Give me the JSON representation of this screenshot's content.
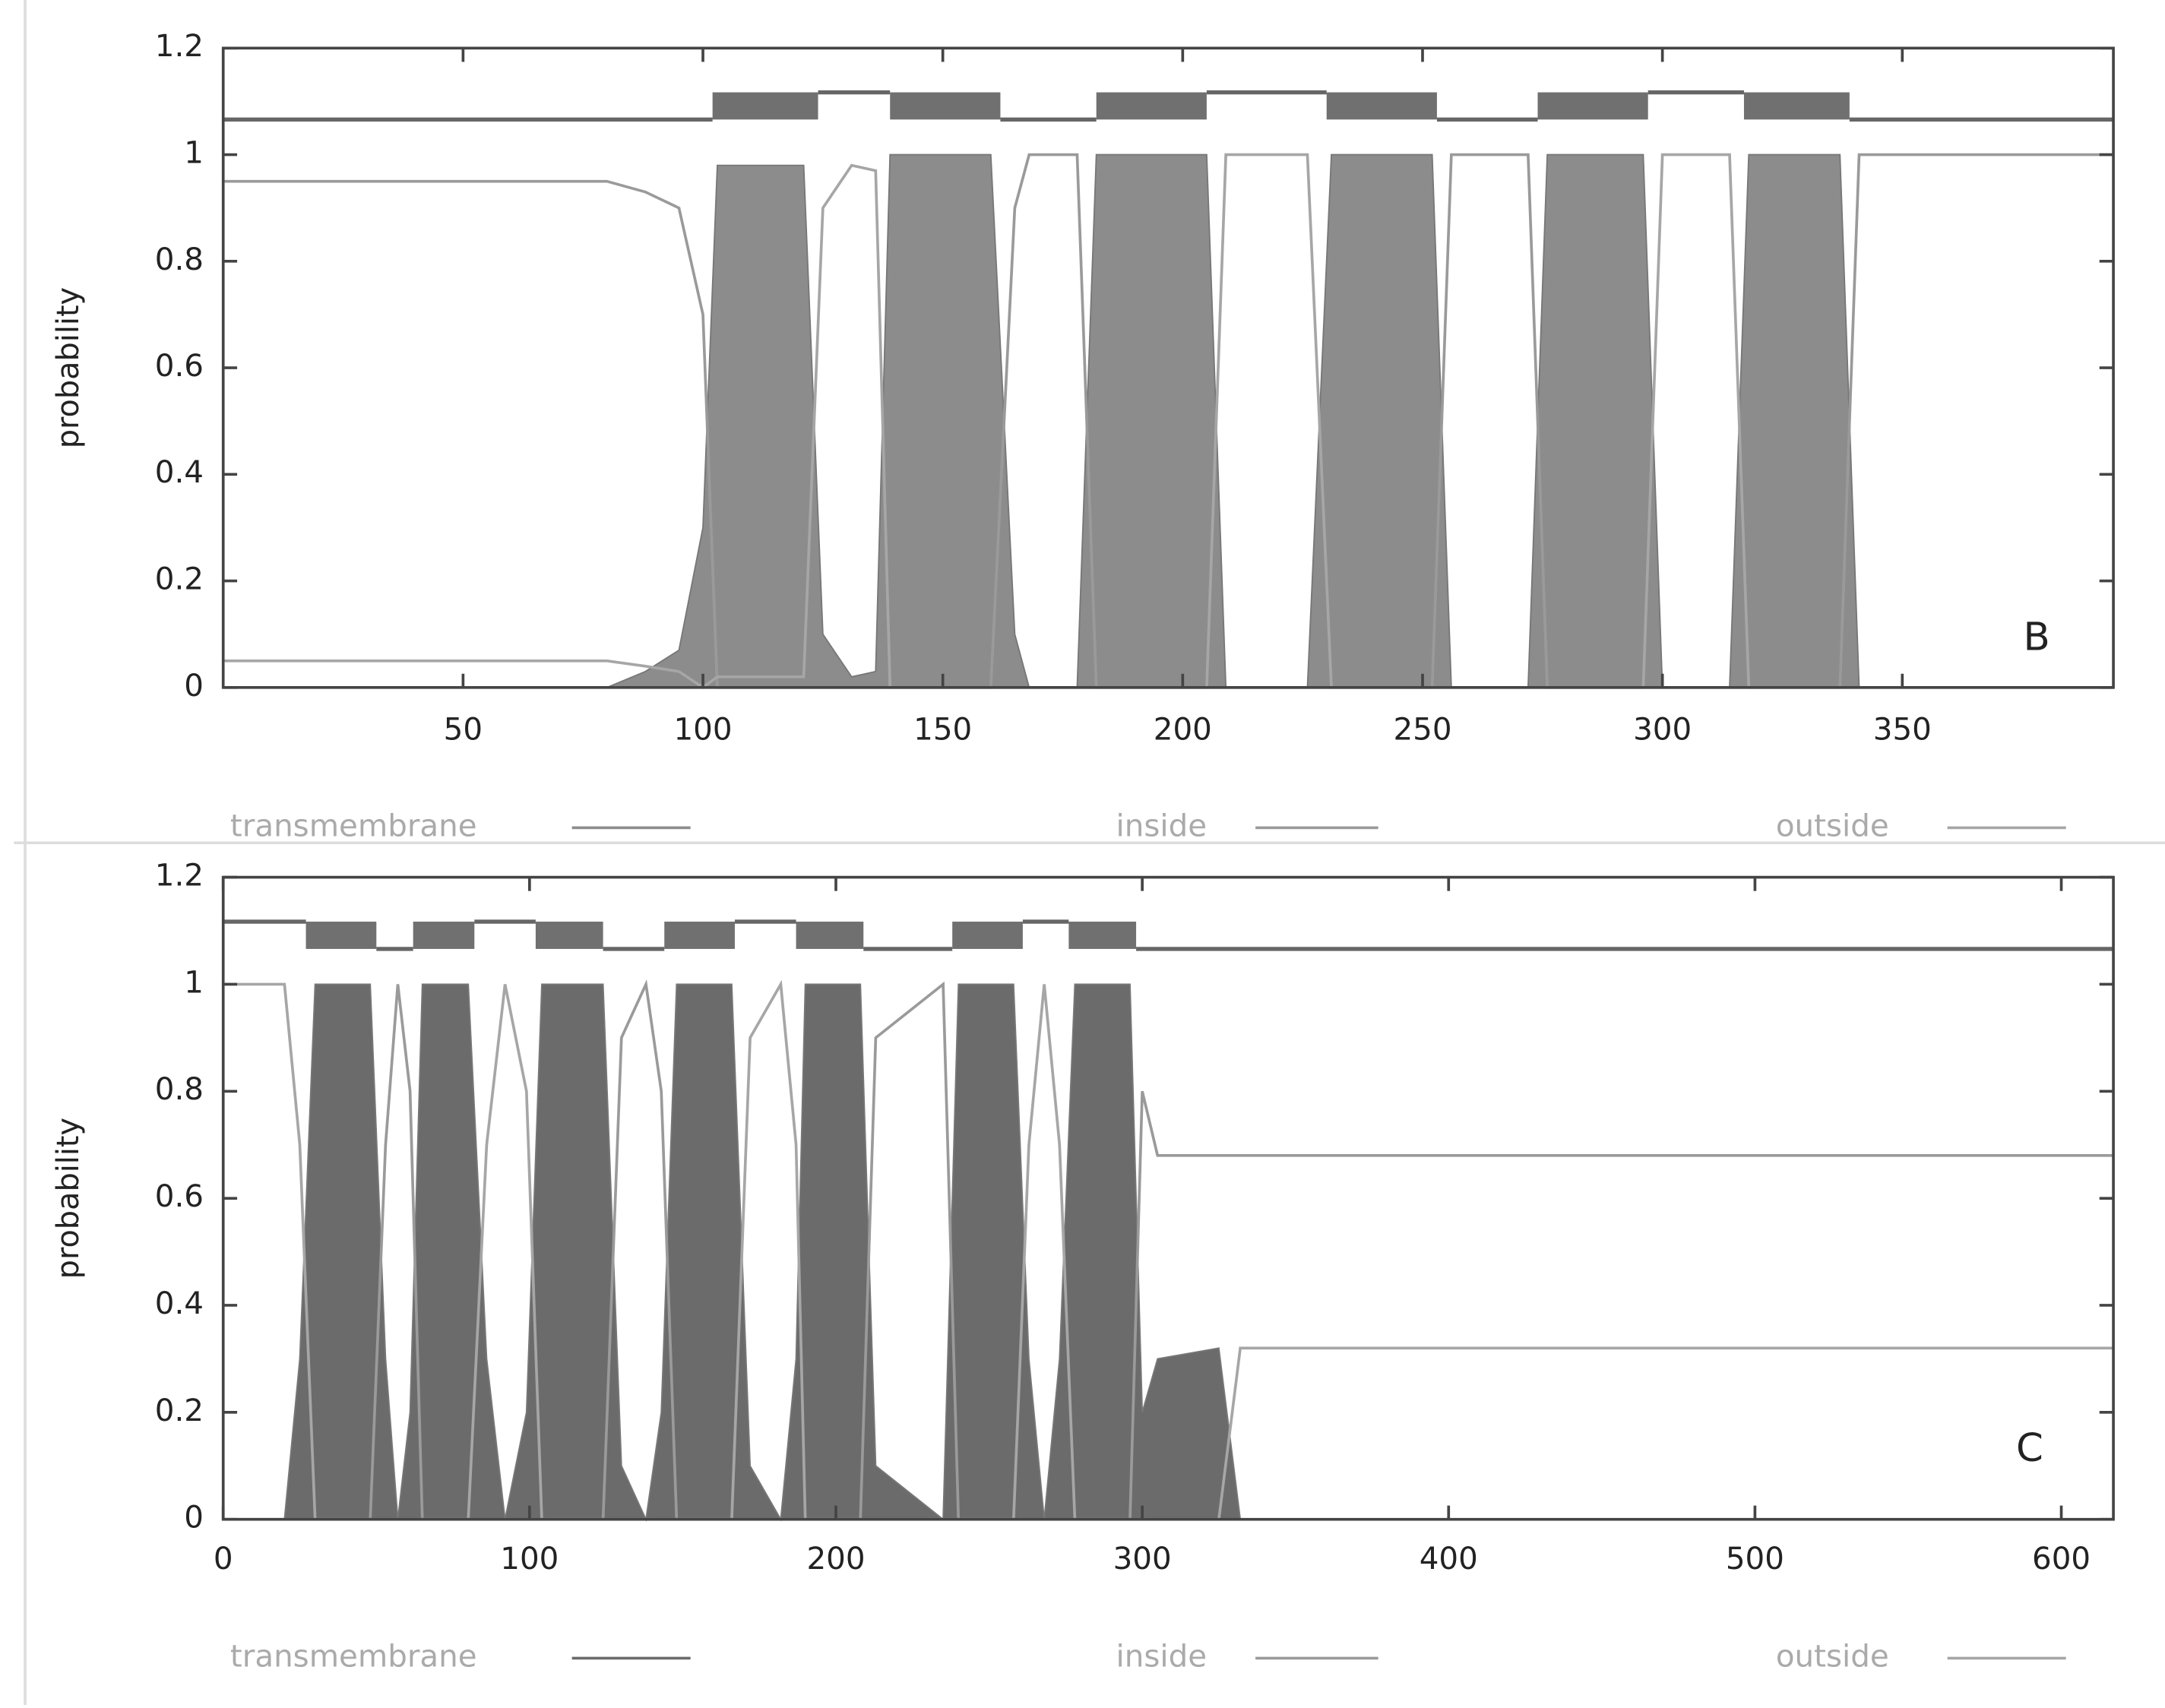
{
  "chart_data": [
    {
      "type": "line",
      "y_label": "probability",
      "annotation": "B",
      "xlim": [
        0,
        394
      ],
      "xticks": [
        50,
        100,
        150,
        200,
        250,
        300,
        350
      ],
      "ylim": [
        0,
        1.2
      ],
      "yticks": [
        0,
        0.2,
        0.4,
        0.6,
        0.8,
        1,
        1.2
      ],
      "x": [
        0,
        80,
        88,
        95,
        100,
        103,
        121,
        125,
        131,
        136,
        139,
        160,
        165,
        168,
        178,
        182,
        205,
        209,
        226,
        231,
        252,
        256,
        272,
        276,
        296,
        300,
        314,
        318,
        337,
        341,
        394
      ],
      "series": [
        {
          "name": "transmembrane",
          "color": "#8c8c8c",
          "area": true,
          "values": [
            0,
            0,
            0.03,
            0.07,
            0.3,
            0.98,
            0.98,
            0.1,
            0.02,
            0.03,
            1,
            1,
            0.1,
            0,
            0,
            1,
            1,
            0,
            0,
            1,
            1,
            0,
            0,
            1,
            1,
            0,
            0,
            1,
            1,
            0,
            0
          ],
          "segments": [
            [
              102,
              124
            ],
            [
              139,
              162
            ],
            [
              182,
              205
            ],
            [
              230,
              253
            ],
            [
              274,
              297
            ],
            [
              317,
              339
            ]
          ]
        },
        {
          "name": "inside",
          "color": "#9a9a9a",
          "values": [
            0.95,
            0.95,
            0.93,
            0.9,
            0.7,
            0,
            0,
            0,
            0,
            0,
            0,
            0,
            0.9,
            1,
            1,
            0,
            0,
            0,
            0,
            0,
            0,
            1,
            1,
            0,
            0,
            0,
            0,
            0,
            0,
            1,
            1
          ],
          "segments": [
            [
              0,
              102
            ],
            [
              162,
              182
            ],
            [
              253,
              274
            ],
            [
              339,
              394
            ]
          ]
        },
        {
          "name": "outside",
          "color": "#a6a6a6",
          "values": [
            0.05,
            0.05,
            0.04,
            0.03,
            0,
            0.02,
            0.02,
            0.9,
            0.98,
            0.97,
            0,
            0,
            0,
            0,
            0,
            0,
            0,
            1,
            1,
            0,
            0,
            0,
            0,
            0,
            0,
            1,
            1,
            0,
            0,
            0,
            0
          ],
          "segments": [
            [
              124,
              139
            ],
            [
              205,
              230
            ],
            [
              297,
              317
            ]
          ]
        }
      ]
    },
    {
      "type": "line",
      "y_label": "probability",
      "annotation": "C",
      "xlim": [
        0,
        617
      ],
      "xticks": [
        0,
        100,
        200,
        300,
        400,
        500,
        600
      ],
      "ylim": [
        0,
        1.2
      ],
      "yticks": [
        0,
        0.2,
        0.4,
        0.6,
        0.8,
        1,
        1.2
      ],
      "x": [
        0,
        20,
        25,
        30,
        48,
        53,
        57,
        61,
        65,
        80,
        86,
        92,
        99,
        104,
        124,
        130,
        138,
        143,
        148,
        166,
        172,
        182,
        187,
        190,
        208,
        213,
        235,
        240,
        258,
        263,
        268,
        273,
        278,
        296,
        300,
        305,
        325,
        332,
        617
      ],
      "series": [
        {
          "name": "transmembrane",
          "color": "#6b6b6b",
          "area": true,
          "values": [
            0,
            0,
            0.3,
            1,
            1,
            0.3,
            0,
            0.2,
            1,
            1,
            0.3,
            0,
            0.2,
            1,
            1,
            0.1,
            0,
            0.2,
            1,
            1,
            0.1,
            0,
            0.3,
            1,
            1,
            0.1,
            0,
            1,
            1,
            0.3,
            0,
            0.3,
            1,
            1,
            0.2,
            0.3,
            0.32,
            0,
            0
          ],
          "segments": [
            [
              27,
              50
            ],
            [
              62,
              82
            ],
            [
              102,
              124
            ],
            [
              144,
              167
            ],
            [
              187,
              209
            ],
            [
              238,
              261
            ],
            [
              276,
              298
            ]
          ]
        },
        {
          "name": "inside",
          "color": "#9a9a9a",
          "values": [
            0,
            0,
            0,
            0,
            0,
            0.7,
            1,
            0.8,
            0,
            0,
            0,
            0,
            0,
            0,
            0,
            0.9,
            1,
            0.8,
            0,
            0,
            0,
            0,
            0,
            0,
            0,
            0.9,
            1,
            0,
            0,
            0,
            0,
            0,
            0,
            0,
            0.8,
            0.68,
            0.68,
            0.68,
            0.68
          ],
          "segments": [
            [
              50,
              62
            ],
            [
              124,
              144
            ],
            [
              209,
              238
            ],
            [
              298,
              617
            ]
          ]
        },
        {
          "name": "outside",
          "color": "#a6a6a6",
          "values": [
            1,
            1,
            0.7,
            0,
            0,
            0,
            0,
            0,
            0,
            0,
            0.7,
            1,
            0.8,
            0,
            0,
            0,
            0,
            0,
            0,
            0,
            0.9,
            1,
            0.7,
            0,
            0,
            0,
            0,
            0,
            0,
            0.7,
            1,
            0.7,
            0,
            0,
            0,
            0,
            0,
            0.32,
            0.32
          ],
          "segments": [
            [
              0,
              27
            ],
            [
              82,
              102
            ],
            [
              167,
              187
            ],
            [
              261,
              276
            ]
          ]
        }
      ]
    }
  ]
}
